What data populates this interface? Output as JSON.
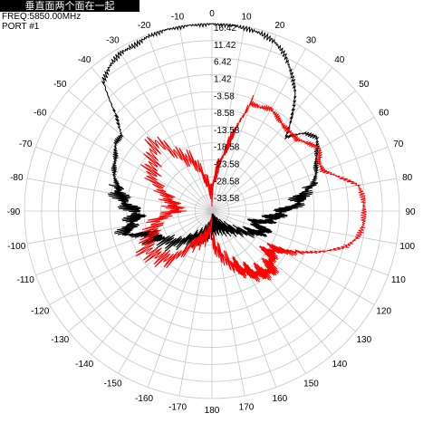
{
  "header": {
    "title": "垂直面两个面在一起",
    "freq": "FREQ:5850.00MHz",
    "port": "PORT #1"
  },
  "chart_data": {
    "type": "polar-line",
    "angle_ticks": [
      0,
      10,
      20,
      30,
      40,
      50,
      60,
      70,
      80,
      90,
      100,
      110,
      120,
      130,
      140,
      150,
      160,
      170,
      180,
      -170,
      -160,
      -150,
      -140,
      -130,
      -120,
      -110,
      -100,
      -90,
      -80,
      -70,
      -60,
      -50,
      -40,
      -30,
      -20,
      -10
    ],
    "radial_ticks": [
      16.42,
      11.42,
      6.42,
      1.42,
      -3.58,
      -8.58,
      -13.58,
      -18.58,
      -23.58,
      -28.58,
      -33.58
    ],
    "rlim": [
      -38.58,
      16.42
    ],
    "colors": {
      "grid": "#c8c8c8",
      "black_series": "#000000",
      "red_series": "#ff0000"
    },
    "series": [
      {
        "color": "#000000",
        "angles": [
          -180,
          -170,
          -160,
          -150,
          -140,
          -130,
          -120,
          -115,
          -110,
          -105,
          -100,
          -95,
          -90,
          -85,
          -80,
          -75,
          -70,
          -65,
          -60,
          -55,
          -50,
          -45,
          -40,
          -35,
          -30,
          -25,
          -20,
          -15,
          -10,
          -5,
          0,
          5,
          10,
          15,
          20,
          25,
          30,
          35,
          40,
          45,
          50,
          55,
          60,
          65,
          70,
          75,
          80,
          85,
          90,
          95,
          100,
          105,
          110,
          115,
          120,
          130,
          140,
          150,
          160,
          170,
          180
        ],
        "values": [
          -34,
          -33,
          -32,
          -30,
          -28,
          -24,
          -22,
          -19,
          -20,
          -12,
          -14,
          -16,
          -16,
          -13,
          -11,
          -10,
          -8,
          -7,
          -6,
          -4,
          -4,
          1,
          11,
          13.5,
          15,
          15,
          16,
          16.4,
          16.4,
          16.4,
          16.4,
          16.4,
          16,
          15.5,
          14.5,
          12,
          8,
          4,
          -2,
          -8,
          -3,
          -1,
          -3,
          -5,
          -6,
          -8,
          -12,
          -13,
          -18,
          -20,
          -22,
          -26,
          -22,
          -24,
          -26,
          -30,
          -32,
          -33,
          -34,
          -34,
          -34
        ]
      },
      {
        "color": "#ff0000",
        "angles": [
          -180,
          -170,
          -160,
          -150,
          -140,
          -130,
          -120,
          -110,
          -100,
          -90,
          -80,
          -70,
          -60,
          -50,
          -40,
          -30,
          -20,
          -10,
          0,
          5,
          10,
          15,
          20,
          25,
          30,
          35,
          40,
          45,
          50,
          55,
          60,
          65,
          70,
          75,
          80,
          85,
          90,
          95,
          100,
          105,
          110,
          115,
          120,
          125,
          130,
          135,
          140,
          145,
          150,
          155,
          160,
          170,
          180
        ],
        "values": [
          -36,
          -32,
          -30,
          -28,
          -20,
          -18,
          -16,
          -20,
          -22,
          -28,
          -27,
          -24,
          -18,
          -16,
          -12,
          -20,
          -23,
          -30,
          -34,
          -28,
          -24,
          -16,
          -5,
          -5,
          -4,
          -5,
          -6,
          -6,
          -6,
          -4,
          -2,
          -4,
          -4,
          0,
          5,
          6,
          6,
          6,
          5,
          2,
          -4,
          -10,
          -16,
          -18,
          -16,
          -14,
          -15,
          -16,
          -18,
          -20,
          -22,
          -26,
          -30
        ]
      }
    ]
  }
}
